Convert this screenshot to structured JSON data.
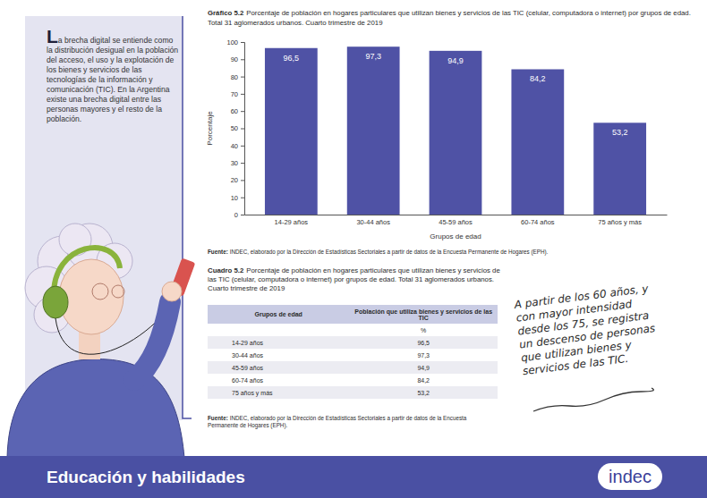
{
  "figure": {
    "number": "Gráfico 5.2"
  },
  "intro": {
    "text": "La brecha digital se entiende como la distribución desigual en la población del acceso, el uso y la explotación de los bienes y servicios de las tecnologías de la información y comunicación (TIC). En la Argentina existe una brecha digital entre las personas mayores y el resto de la población."
  },
  "chart_data": {
    "type": "bar",
    "title": "Porcentaje de población en hogares particulares que utilizan bienes y servicios de las TIC (celular, computadora o internet) por grupos de edad. Total 31 aglomerados urbanos. Cuarto trimestre de 2019",
    "x_label": "Grupos de edad",
    "y_label": "Porcentaje",
    "categories": [
      "14-29 años",
      "30-44 años",
      "45-59 años",
      "60-74 años",
      "75 años y más"
    ],
    "values": [
      96.5,
      97.3,
      94.9,
      84.2,
      53.2
    ],
    "value_labels": [
      "96,5",
      "97,3",
      "94,9",
      "84,2",
      "53,2"
    ],
    "color": "#4f52a5",
    "ylim": [
      0,
      100
    ],
    "yticks": [
      0,
      10,
      20,
      30,
      40,
      50,
      60,
      70,
      80,
      90,
      100
    ],
    "grid": false,
    "data_labels": true
  },
  "chart_source": {
    "label": "Fuente:",
    "text": "INDEC, elaborado por la Dirección de Estadísticas Sectoriales a partir de datos de la Encuesta Permanente de Hogares (EPH)."
  },
  "table": {
    "number": "Cuadro 5.2",
    "title": "Porcentaje de población en hogares particulares que utilizan bienes y servicios de las TIC (celular, computadora o internet) por grupos de edad. Total 31 aglomerados urbanos. Cuarto trimestre de 2019",
    "header": [
      "Grupos de edad",
      "Población que utiliza bienes y servicios de las TIC"
    ],
    "unit": "%",
    "rows": [
      [
        "14-29 años",
        "96,5"
      ],
      [
        "30-44 años",
        "97,3"
      ],
      [
        "45-59 años",
        "94,9"
      ],
      [
        "60-74 años",
        "84,2"
      ],
      [
        "75 años y más",
        "53,2"
      ]
    ]
  },
  "table_source": {
    "label": "Fuente:",
    "text": "INDEC, elaborado por la Dirección de Estadísticas Sectoriales a partir de datos de la Encuesta Permanente de Hogares (EPH)."
  },
  "annotation": {
    "lines": [
      "A partir de los 60 años, y",
      "con mayor intensidad",
      "desde los 75, se registra",
      "un descenso de personas",
      "que utilizan bienes y",
      "servicios de las TIC."
    ]
  },
  "footer": {
    "section": "Educación y habilidades",
    "logo": "indec"
  }
}
